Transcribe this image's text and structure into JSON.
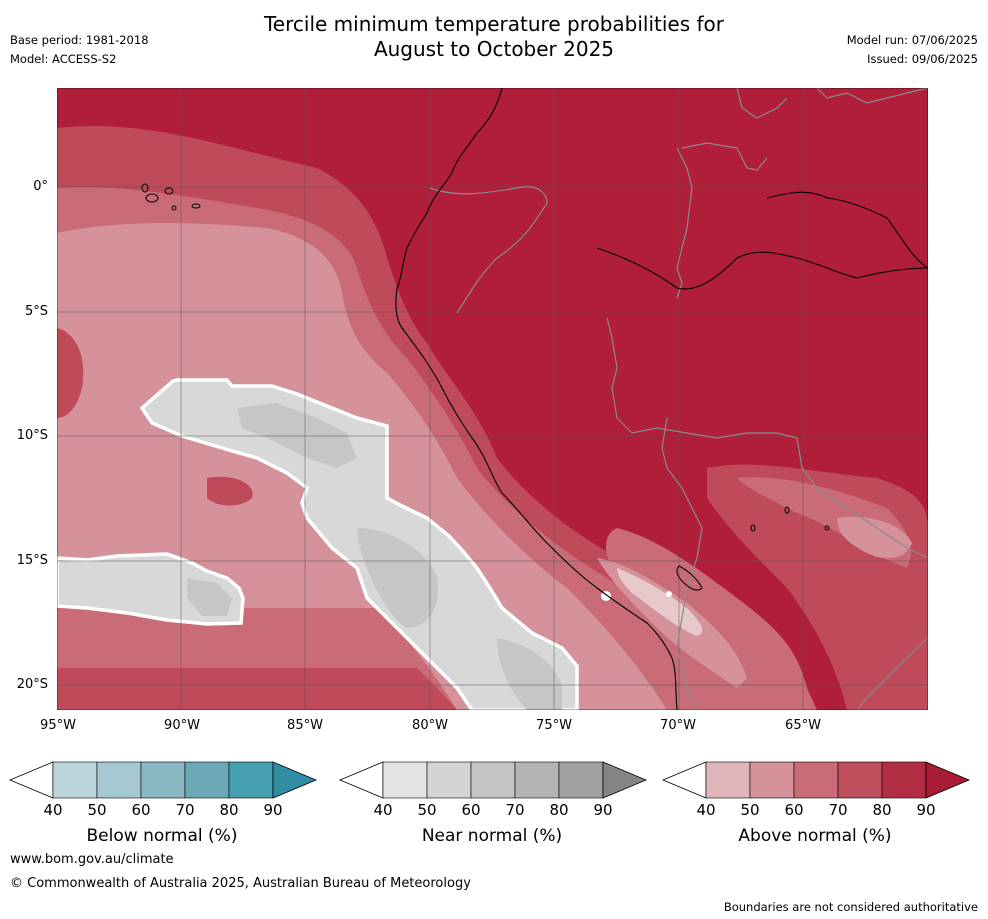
{
  "title_line1": "Tercile minimum temperature probabilities for",
  "title_line2": "August to October 2025",
  "base_period": "Base period: 1981-2018",
  "model": "Model: ACCESS-S2",
  "model_run": "Model run: 07/06/2025",
  "issued": "Issued: 09/06/2025",
  "map": {
    "lat_labels": [
      "0°",
      "5°S",
      "10°S",
      "15°S",
      "20°S"
    ],
    "lon_labels": [
      "95°W",
      "90°W",
      "85°W",
      "80°W",
      "75°W",
      "70°W",
      "65°W"
    ]
  },
  "colorbars": [
    {
      "label": "Below normal (%)",
      "ticks": [
        "40",
        "50",
        "60",
        "70",
        "80",
        "90"
      ],
      "colors": [
        "#bcd6dc",
        "#a5c7cf",
        "#89b7c2",
        "#6aaab7",
        "#48a0b0",
        "#2f8ea4"
      ]
    },
    {
      "label": "Near normal (%)",
      "ticks": [
        "40",
        "50",
        "60",
        "70",
        "80",
        "90"
      ],
      "colors": [
        "#e3e3e3",
        "#d4d4d4",
        "#c4c4c4",
        "#b4b4b4",
        "#a0a0a0",
        "#858585"
      ]
    },
    {
      "label": "Above normal (%)",
      "ticks": [
        "40",
        "50",
        "60",
        "70",
        "80",
        "90"
      ],
      "colors": [
        "#e0b5ba",
        "#d5929b",
        "#c86d78",
        "#be4f5d",
        "#b12e42",
        "#a91c36"
      ]
    }
  ],
  "footer": {
    "url": "www.bom.gov.au/climate",
    "copyright": "© Commonwealth of Australia 2025, Australian Bureau of Meteorology",
    "disclaimer": "Boundaries are not considered authoritative"
  }
}
